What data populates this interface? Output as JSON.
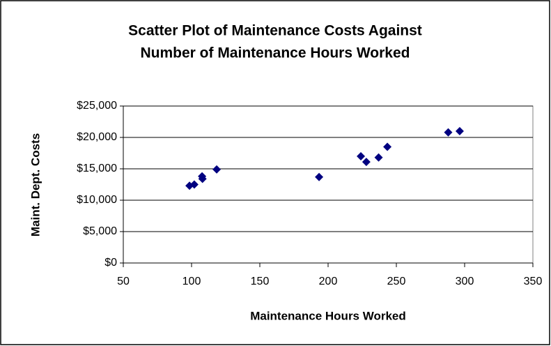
{
  "chart_data": {
    "type": "scatter",
    "title": [
      "Scatter Plot of Maintenance Costs Against",
      "Number of Maintenance Hours Worked"
    ],
    "xlabel": "Maintenance Hours Worked",
    "ylabel": "Maint. Dept. Costs",
    "x": [
      98.5,
      102,
      107.7,
      108,
      118.4,
      193.4,
      224,
      228,
      237,
      243.4,
      288,
      296.4
    ],
    "values": [
      12300,
      12500,
      13800,
      13400,
      14900,
      13700,
      17000,
      16100,
      16800,
      18500,
      20800,
      21000
    ],
    "color": "#000080",
    "xlim": [
      50,
      350
    ],
    "xticks": [
      50,
      100,
      150,
      200,
      250,
      300,
      350
    ],
    "ylim": [
      0,
      25000
    ],
    "yticks": [
      {
        "value": 0,
        "label": "$0"
      },
      {
        "value": 5000,
        "label": "$5,000"
      },
      {
        "value": 10000,
        "label": "$10,000"
      },
      {
        "value": 15000,
        "label": "$15,000"
      },
      {
        "value": 20000,
        "label": "$20,000"
      },
      {
        "value": 25000,
        "label": "$25,000"
      }
    ],
    "grid": true
  }
}
